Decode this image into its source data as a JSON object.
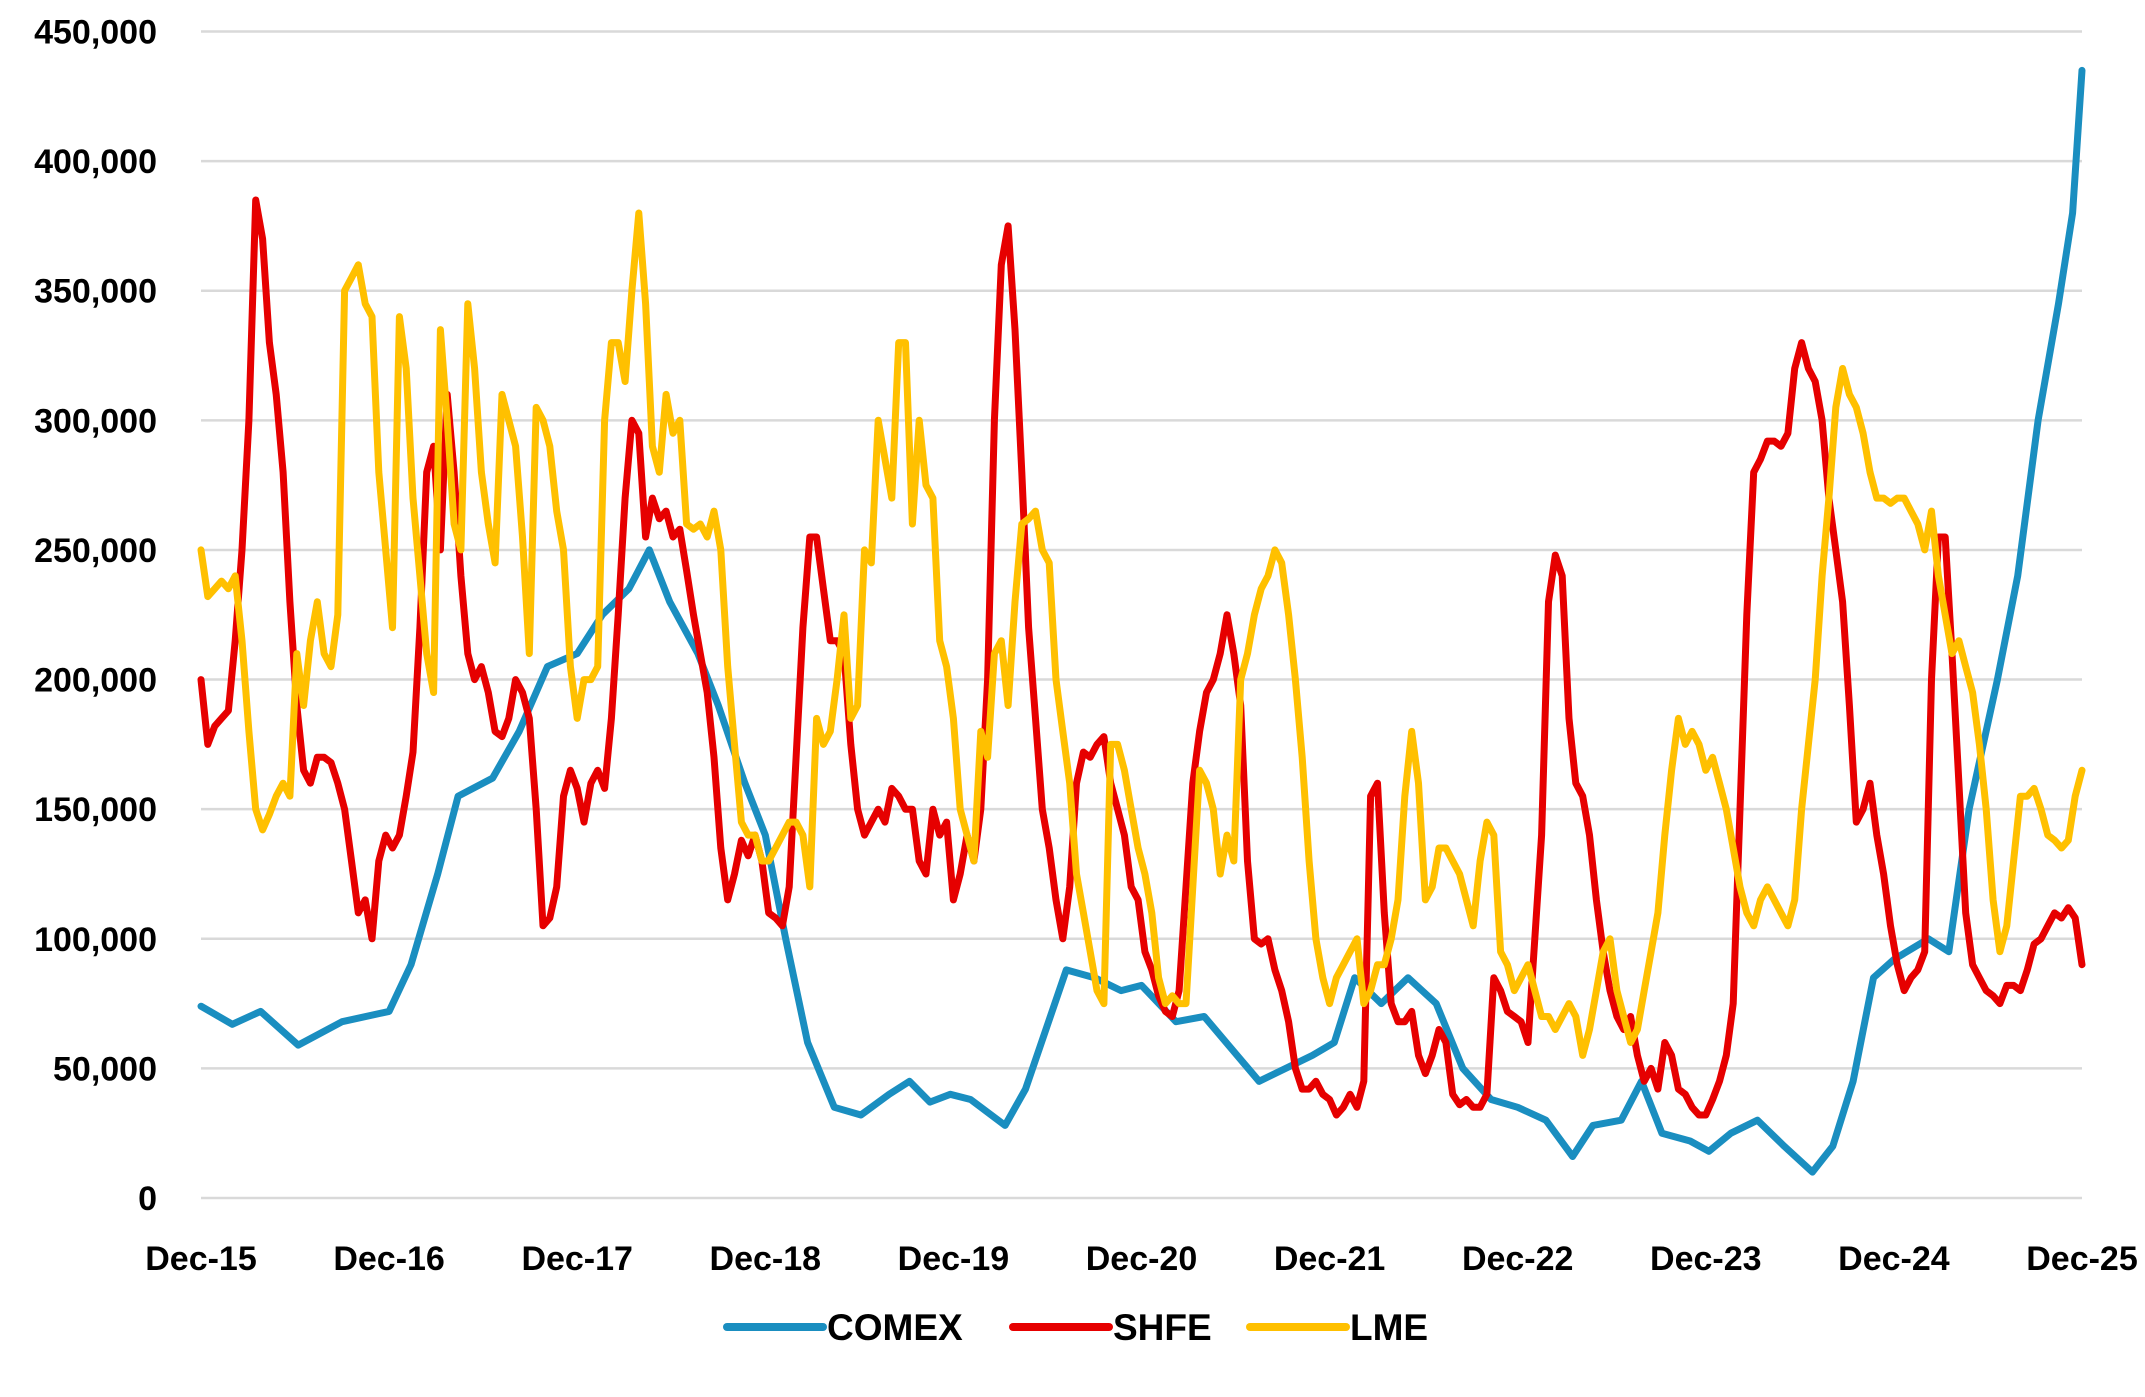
{
  "chart_data": {
    "type": "line",
    "title": "",
    "xlabel": "",
    "ylabel": "",
    "x_unit": "months since Dec-15",
    "xlim": [
      0,
      120
    ],
    "ylim": [
      0,
      450000
    ],
    "grid": true,
    "legend_position": "bottom",
    "x_tick_labels": [
      "Dec-15",
      "Dec-16",
      "Dec-17",
      "Dec-18",
      "Dec-19",
      "Dec-20",
      "Dec-21",
      "Dec-22",
      "Dec-23",
      "Dec-24",
      "Dec-25"
    ],
    "y_ticks": [
      0,
      50000,
      100000,
      150000,
      200000,
      250000,
      300000,
      350000,
      400000,
      450000
    ],
    "y_tick_labels": [
      "0",
      "50,000",
      "100,000",
      "150,000",
      "200,000",
      "250,000",
      "300,000",
      "350,000",
      "400,000",
      "450,000"
    ],
    "value_unit_multiplier": 1000,
    "series": [
      {
        "name": "COMEX",
        "color": "#1A8EC0",
        "points": [
          [
            0,
            74
          ],
          [
            2,
            67
          ],
          [
            3.8,
            72
          ],
          [
            6.2,
            59
          ],
          [
            9,
            68
          ],
          [
            12,
            72
          ],
          [
            13.4,
            90
          ],
          [
            15.1,
            125
          ],
          [
            16.4,
            155
          ],
          [
            18.6,
            162
          ],
          [
            20.3,
            180
          ],
          [
            22.1,
            205
          ],
          [
            24,
            210
          ],
          [
            25.6,
            225
          ],
          [
            27.3,
            235
          ],
          [
            28.6,
            250
          ],
          [
            29.9,
            230
          ],
          [
            31.7,
            210
          ],
          [
            33,
            190
          ],
          [
            34.7,
            160
          ],
          [
            36,
            140
          ],
          [
            37.3,
            100
          ],
          [
            38.7,
            60
          ],
          [
            40.4,
            35
          ],
          [
            42.1,
            32
          ],
          [
            43.9,
            40
          ],
          [
            45.2,
            45
          ],
          [
            46.5,
            37
          ],
          [
            47.8,
            40
          ],
          [
            49.1,
            38
          ],
          [
            51.3,
            28
          ],
          [
            52.6,
            42
          ],
          [
            53.9,
            65
          ],
          [
            55.2,
            88
          ],
          [
            57,
            85
          ],
          [
            58.7,
            80
          ],
          [
            60,
            82
          ],
          [
            62.2,
            68
          ],
          [
            64,
            70
          ],
          [
            66.1,
            55
          ],
          [
            67.5,
            45
          ],
          [
            69.2,
            50
          ],
          [
            70.9,
            55
          ],
          [
            72.3,
            60
          ],
          [
            73.6,
            85
          ],
          [
            75.3,
            75
          ],
          [
            77,
            85
          ],
          [
            78.8,
            75
          ],
          [
            80.5,
            50
          ],
          [
            82.3,
            38
          ],
          [
            84,
            35
          ],
          [
            85.8,
            30
          ],
          [
            87.5,
            16
          ],
          [
            88.8,
            28
          ],
          [
            90.6,
            30
          ],
          [
            91.9,
            45
          ],
          [
            93.2,
            25
          ],
          [
            95,
            22
          ],
          [
            96.2,
            18
          ],
          [
            97.6,
            25
          ],
          [
            99.3,
            30
          ],
          [
            101,
            20
          ],
          [
            102.8,
            10
          ],
          [
            104.1,
            20
          ],
          [
            105.4,
            45
          ],
          [
            106.7,
            85
          ],
          [
            108,
            92
          ],
          [
            110.2,
            100
          ],
          [
            111.5,
            95
          ],
          [
            112.8,
            150
          ],
          [
            114.6,
            200
          ],
          [
            115.9,
            240
          ],
          [
            117.2,
            300
          ],
          [
            118.5,
            345
          ],
          [
            119.4,
            380
          ],
          [
            120,
            435
          ]
        ]
      },
      {
        "name": "SHFE",
        "color": "#E60000",
        "uniform_values": [
          200,
          175,
          182,
          185,
          188,
          215,
          250,
          300,
          385,
          370,
          330,
          310,
          280,
          230,
          190,
          165,
          160,
          170,
          170,
          168,
          160,
          150,
          130,
          110,
          115,
          100,
          130,
          140,
          135,
          140,
          155,
          172,
          220,
          280,
          290,
          250,
          310,
          280,
          240,
          210,
          200,
          205,
          195,
          180,
          178,
          185,
          200,
          195,
          185,
          150,
          105,
          108,
          120,
          155,
          165,
          158,
          145,
          160,
          165,
          158,
          185,
          225,
          270,
          300,
          295,
          255,
          270,
          262,
          265,
          255,
          258,
          242,
          225,
          210,
          195,
          170,
          135,
          115,
          125,
          138,
          132,
          140,
          130,
          110,
          108,
          105,
          120,
          170,
          220,
          255,
          255,
          235,
          215,
          215,
          210,
          175,
          150,
          140,
          145,
          150,
          145,
          158,
          155,
          150,
          150,
          130,
          125,
          150,
          140,
          145,
          115,
          125,
          140,
          130,
          150,
          200,
          300,
          360,
          375,
          335,
          280,
          220,
          185,
          150,
          135,
          115,
          100,
          120,
          160,
          172,
          170,
          175,
          178,
          160,
          150,
          140,
          120,
          115,
          95,
          88,
          78,
          72,
          70,
          80,
          120,
          160,
          180,
          195,
          200,
          210,
          225,
          210,
          190,
          130,
          100,
          98,
          100,
          88,
          80,
          68,
          50,
          42,
          42,
          45,
          40,
          38,
          32,
          35,
          40,
          35,
          45,
          155,
          160,
          110,
          75,
          68,
          68,
          72,
          55,
          48,
          55,
          65,
          60,
          40,
          36,
          38,
          35,
          35,
          40,
          85,
          80,
          72,
          70,
          68,
          60,
          100,
          140,
          230,
          248,
          240,
          185,
          160,
          155,
          140,
          115,
          95,
          80,
          70,
          65,
          70,
          55,
          45,
          50,
          42,
          60,
          55,
          42,
          40,
          35,
          32,
          32,
          38,
          45,
          55,
          75,
          150,
          225,
          280,
          285,
          292,
          292,
          290,
          295,
          320,
          330,
          320,
          315,
          300,
          270,
          250,
          230,
          190,
          145,
          150,
          160,
          140,
          125,
          105,
          90,
          80,
          85,
          88,
          95,
          200,
          255,
          255,
          210,
          160,
          110,
          90,
          85,
          80,
          78,
          75,
          82,
          82,
          80,
          88,
          98,
          100,
          105,
          110,
          108,
          112,
          108,
          90
        ]
      },
      {
        "name": "LME",
        "color": "#FFC000",
        "uniform_values": [
          250,
          232,
          235,
          238,
          235,
          240,
          215,
          180,
          150,
          142,
          148,
          155,
          160,
          155,
          210,
          190,
          215,
          230,
          210,
          205,
          225,
          350,
          355,
          360,
          345,
          340,
          280,
          250,
          220,
          340,
          320,
          270,
          240,
          210,
          195,
          335,
          300,
          260,
          250,
          345,
          320,
          280,
          260,
          245,
          310,
          300,
          290,
          255,
          210,
          305,
          300,
          290,
          265,
          250,
          205,
          185,
          200,
          200,
          205,
          300,
          330,
          330,
          315,
          350,
          380,
          345,
          290,
          280,
          310,
          295,
          300,
          260,
          258,
          260,
          255,
          265,
          250,
          205,
          175,
          145,
          140,
          140,
          130,
          130,
          135,
          140,
          145,
          145,
          140,
          120,
          185,
          175,
          180,
          200,
          225,
          185,
          190,
          250,
          245,
          300,
          285,
          270,
          330,
          330,
          260,
          300,
          275,
          270,
          215,
          205,
          185,
          150,
          140,
          130,
          180,
          170,
          210,
          215,
          190,
          230,
          260,
          262,
          265,
          250,
          245,
          200,
          180,
          160,
          125,
          110,
          95,
          80,
          75,
          175,
          175,
          165,
          150,
          135,
          125,
          110,
          85,
          75,
          78,
          75,
          75,
          120,
          165,
          160,
          150,
          125,
          140,
          130,
          200,
          210,
          225,
          235,
          240,
          250,
          245,
          225,
          200,
          170,
          130,
          100,
          85,
          75,
          85,
          90,
          95,
          100,
          75,
          80,
          90,
          90,
          100,
          115,
          155,
          180,
          160,
          115,
          120,
          135,
          135,
          130,
          125,
          115,
          105,
          130,
          145,
          140,
          95,
          90,
          80,
          85,
          90,
          80,
          70,
          70,
          65,
          70,
          75,
          70,
          55,
          65,
          80,
          95,
          100,
          80,
          70,
          60,
          65,
          80,
          95,
          110,
          140,
          165,
          185,
          175,
          180,
          175,
          165,
          170,
          160,
          150,
          135,
          120,
          110,
          105,
          115,
          120,
          115,
          110,
          105,
          115,
          150,
          175,
          200,
          240,
          270,
          305,
          320,
          310,
          305,
          295,
          280,
          270,
          270,
          268,
          270,
          270,
          265,
          260,
          250,
          265,
          240,
          225,
          210,
          215,
          205,
          195,
          175,
          150,
          115,
          95,
          105,
          130,
          155,
          155,
          158,
          150,
          140,
          138,
          135,
          138,
          155,
          165
        ]
      }
    ]
  }
}
